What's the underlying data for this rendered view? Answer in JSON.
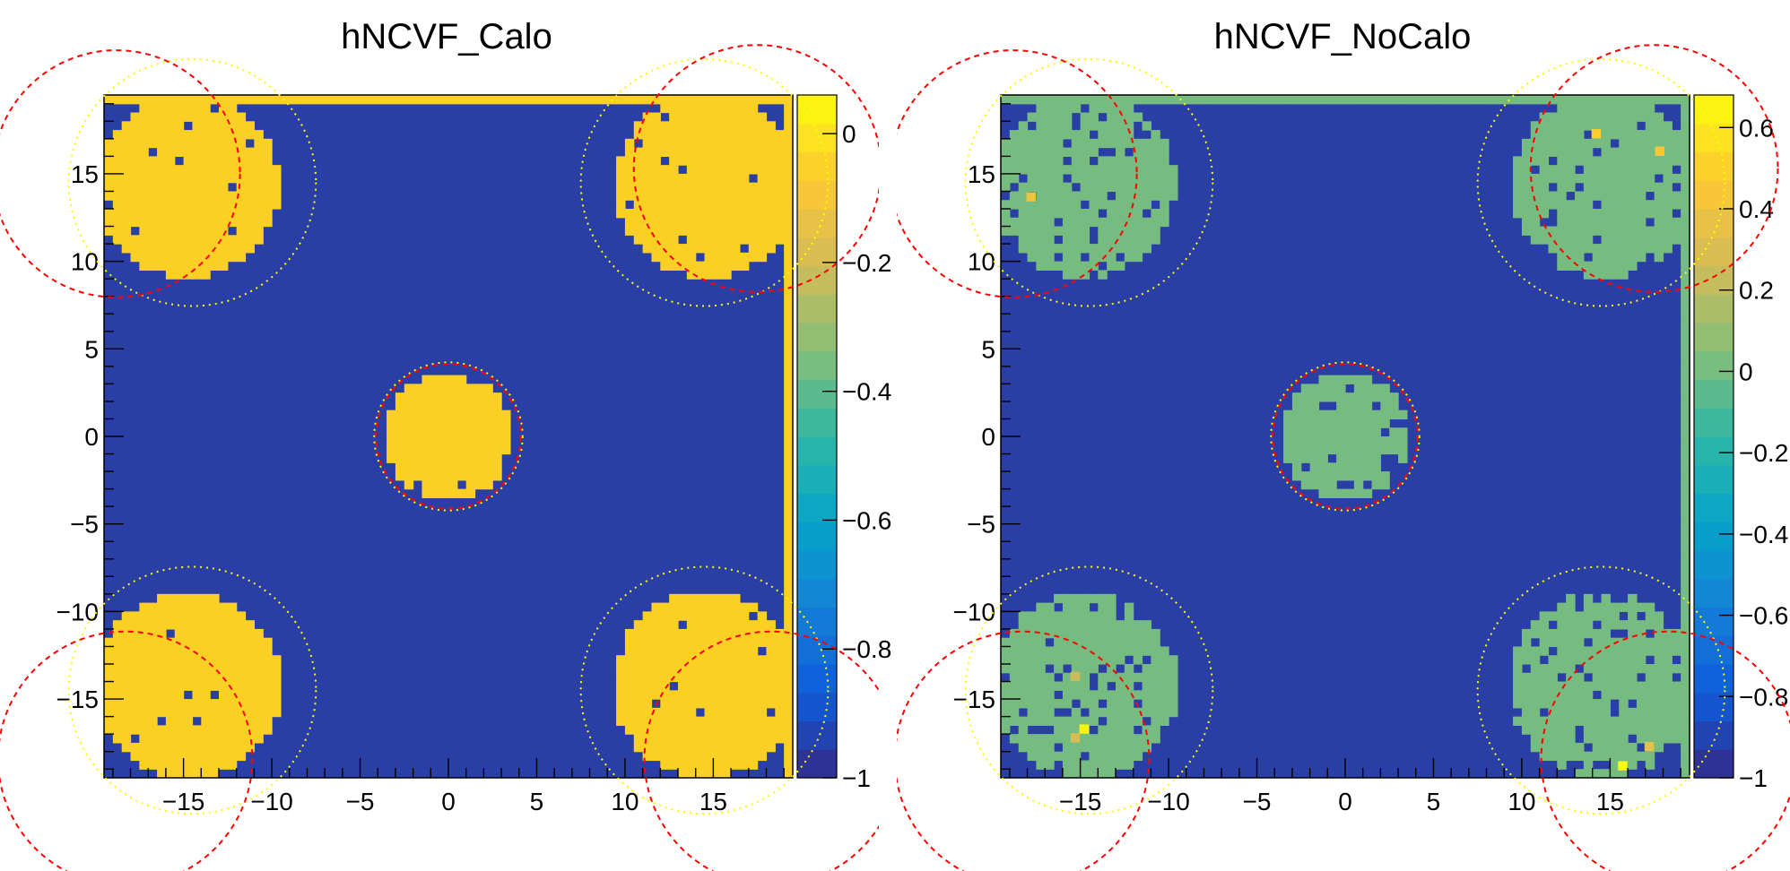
{
  "chart_data": [
    {
      "type": "heatmap",
      "title": "hNCVF_Calo",
      "xlabel": "",
      "ylabel": "",
      "xlim": [
        -19.5,
        19.5
      ],
      "ylim": [
        -19.5,
        19.5
      ],
      "x_ticks": [
        -15,
        -10,
        -5,
        0,
        5,
        10,
        15
      ],
      "y_ticks": [
        -15,
        -10,
        -5,
        0,
        5,
        10,
        15
      ],
      "x_tick_labels": [
        "−15",
        "−10",
        "−5",
        "0",
        "5",
        "10",
        "15"
      ],
      "y_tick_labels": [
        "−15",
        "−10",
        "−5",
        "0",
        "5",
        "10",
        "15"
      ],
      "zlim": [
        -1,
        0.06
      ],
      "colorbar_ticks": [
        0,
        -0.2,
        -0.4,
        -0.6,
        -0.8,
        -1
      ],
      "colorbar_tick_labels": [
        "0",
        "−0.2",
        "−0.4",
        "−0.6",
        "−0.8",
        "−1"
      ],
      "background_value": -1,
      "fill_value": 0,
      "fill_color": "#fbd024",
      "top_row_value": 0,
      "right_column_value": 0,
      "hole_fraction": 0.02,
      "regions": [
        {
          "cx": 0,
          "cy": 0,
          "r": 3.6
        },
        {
          "cx": -14.8,
          "cy": 14.3,
          "r": 5.2
        },
        {
          "cx": 14.6,
          "cy": 14.3,
          "r": 5.2
        },
        {
          "cx": -14.8,
          "cy": -14.2,
          "r": 5.3
        },
        {
          "cx": 14.6,
          "cy": -14.2,
          "r": 5.3
        }
      ],
      "overlay_red_circles": [
        {
          "cx": 0,
          "cy": 0,
          "r": 4.1
        },
        {
          "cx": -18.8,
          "cy": 15.0,
          "r": 7.0
        },
        {
          "cx": 17.5,
          "cy": 15.3,
          "r": 7.0
        },
        {
          "cx": -18.3,
          "cy": -18.4,
          "r": 7.2
        },
        {
          "cx": 18.3,
          "cy": -18.4,
          "r": 7.2
        }
      ],
      "overlay_yellow_circles": [
        {
          "cx": 0,
          "cy": 0,
          "r": 4.2
        },
        {
          "cx": -14.5,
          "cy": 14.5,
          "r": 7.0
        },
        {
          "cx": 14.5,
          "cy": 14.5,
          "r": 7.0
        },
        {
          "cx": -14.5,
          "cy": -14.5,
          "r": 7.0
        },
        {
          "cx": 14.5,
          "cy": -14.5,
          "r": 7.0
        }
      ]
    },
    {
      "type": "heatmap",
      "title": "hNCVF_NoCalo",
      "xlabel": "",
      "ylabel": "",
      "xlim": [
        -19.5,
        19.5
      ],
      "ylim": [
        -19.5,
        19.5
      ],
      "x_ticks": [
        -15,
        -10,
        -5,
        0,
        5,
        10,
        15
      ],
      "y_ticks": [
        -15,
        -10,
        -5,
        0,
        5,
        10,
        15
      ],
      "x_tick_labels": [
        "−15",
        "−10",
        "−5",
        "0",
        "5",
        "10",
        "15"
      ],
      "y_tick_labels": [
        "−15",
        "−10",
        "−5",
        "0",
        "5",
        "10",
        "15"
      ],
      "zlim": [
        -1,
        0.68
      ],
      "colorbar_ticks": [
        0.6,
        0.4,
        0.2,
        0,
        -0.2,
        -0.4,
        -0.6,
        -0.8,
        -1
      ],
      "colorbar_tick_labels": [
        "0.6",
        "0.4",
        "0.2",
        "0",
        "−0.2",
        "−0.4",
        "−0.6",
        "−0.8",
        "−1"
      ],
      "background_value": -1,
      "fill_value": 0,
      "fill_color": "#76bc80",
      "top_row_value": 0,
      "right_column_value": 0,
      "hole_fraction": 0.13,
      "regions": [
        {
          "cx": 0,
          "cy": 0,
          "r": 3.6
        },
        {
          "cx": -14.8,
          "cy": 14.3,
          "r": 5.2
        },
        {
          "cx": 14.6,
          "cy": 14.3,
          "r": 5.2
        },
        {
          "cx": -14.8,
          "cy": -14.2,
          "r": 5.3
        },
        {
          "cx": 14.6,
          "cy": -14.2,
          "r": 5.3
        }
      ],
      "hot_cells": [
        {
          "x": 14.2,
          "y": 17.3,
          "value": 0.5
        },
        {
          "x": 17.8,
          "y": 16.3,
          "value": 0.45
        },
        {
          "x": -17.8,
          "y": 13.7,
          "value": 0.4
        },
        {
          "x": -14.8,
          "y": -16.7,
          "value": 0.65
        },
        {
          "x": -15.3,
          "y": -17.2,
          "value": 0.3
        },
        {
          "x": -15.3,
          "y": -13.7,
          "value": 0.25
        },
        {
          "x": 15.7,
          "y": -18.8,
          "value": 0.68
        },
        {
          "x": 17.2,
          "y": -17.7,
          "value": 0.35
        }
      ],
      "overlay_red_circles": [
        {
          "cx": 0,
          "cy": 0,
          "r": 4.1
        },
        {
          "cx": -18.8,
          "cy": 15.0,
          "r": 7.0
        },
        {
          "cx": 17.5,
          "cy": 15.3,
          "r": 7.0
        },
        {
          "cx": -18.3,
          "cy": -18.4,
          "r": 7.2
        },
        {
          "cx": 18.3,
          "cy": -18.4,
          "r": 7.2
        }
      ],
      "overlay_yellow_circles": [
        {
          "cx": 0,
          "cy": 0,
          "r": 4.2
        },
        {
          "cx": -14.5,
          "cy": 14.5,
          "r": 7.0
        },
        {
          "cx": 14.5,
          "cy": 14.5,
          "r": 7.0
        },
        {
          "cx": -14.5,
          "cy": -14.5,
          "r": 7.0
        },
        {
          "cx": 14.5,
          "cy": -14.5,
          "r": 7.0
        }
      ]
    }
  ],
  "palette": {
    "background_color": "#2a3fa5",
    "overlay_red": "#ff0000",
    "overlay_yellow": "#ffff00",
    "colormap": [
      "#352a87",
      "#0f5cdd",
      "#1481d6",
      "#06a4ca",
      "#2eb7a4",
      "#87bf77",
      "#d1bb59",
      "#fec832",
      "#f9fb0e"
    ]
  }
}
